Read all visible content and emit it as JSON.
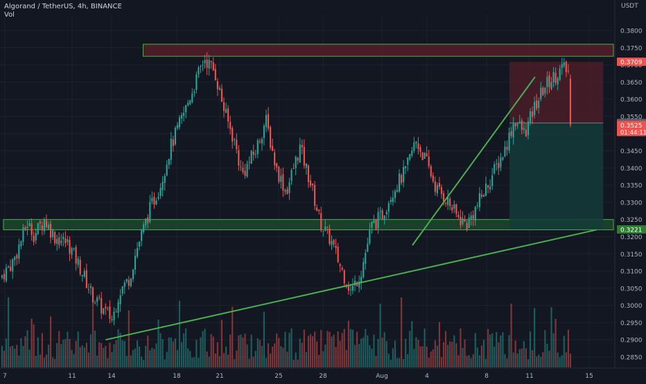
{
  "header": {
    "symbol_line": "Algorand / TetherUS, 4h, BINANCE",
    "volume_label": "Vol",
    "quote_currency": "USDT"
  },
  "colors": {
    "background": "#131722",
    "up": "#26a69a",
    "down": "#ef5350",
    "trendline": "#4caf50",
    "zone_border": "#4caf50",
    "resistance_fill": "#5c1f2a",
    "support_fill": "#1f4d2e",
    "stop_fill": "#4a1d27",
    "target_fill": "#143b3a",
    "grid": "#1e2230"
  },
  "chart_data": {
    "type": "candlestick",
    "x_tick_labels": [
      "7",
      "11",
      "14",
      "18",
      "21",
      "25",
      "28",
      "Aug",
      "4",
      "8",
      "11",
      "15"
    ],
    "y_tick_labels": [
      "0.3800",
      "0.3750",
      "0.3700",
      "0.3650",
      "0.3600",
      "0.3550",
      "0.3500",
      "0.3450",
      "0.3400",
      "0.3350",
      "0.3300",
      "0.3250",
      "0.3200",
      "0.3150",
      "0.3100",
      "0.3050",
      "0.3000",
      "0.2950",
      "0.2900",
      "0.2850"
    ],
    "ylim": [
      0.2835,
      0.3835
    ],
    "x_domain": [
      0,
      180
    ],
    "price_path": [
      [
        0,
        0.308
      ],
      [
        4,
        0.313
      ],
      [
        8,
        0.324
      ],
      [
        10,
        0.3205
      ],
      [
        13,
        0.325
      ],
      [
        16,
        0.32
      ],
      [
        20,
        0.318
      ],
      [
        24,
        0.31
      ],
      [
        27,
        0.303
      ],
      [
        30,
        0.299
      ],
      [
        33,
        0.296
      ],
      [
        35,
        0.304
      ],
      [
        38,
        0.308
      ],
      [
        40,
        0.316
      ],
      [
        44,
        0.328
      ],
      [
        47,
        0.335
      ],
      [
        50,
        0.346
      ],
      [
        54,
        0.356
      ],
      [
        57,
        0.364
      ],
      [
        60,
        0.372
      ],
      [
        63,
        0.368
      ],
      [
        66,
        0.356
      ],
      [
        69,
        0.347
      ],
      [
        71,
        0.338
      ],
      [
        75,
        0.345
      ],
      [
        78,
        0.354
      ],
      [
        81,
        0.34
      ],
      [
        84,
        0.333
      ],
      [
        88,
        0.346
      ],
      [
        91,
        0.336
      ],
      [
        94,
        0.324
      ],
      [
        97,
        0.319
      ],
      [
        100,
        0.311
      ],
      [
        103,
        0.304
      ],
      [
        106,
        0.31
      ],
      [
        109,
        0.323
      ],
      [
        112,
        0.326
      ],
      [
        115,
        0.333
      ],
      [
        119,
        0.339
      ],
      [
        122,
        0.348
      ],
      [
        125,
        0.342
      ],
      [
        128,
        0.334
      ],
      [
        131,
        0.331
      ],
      [
        134,
        0.326
      ],
      [
        137,
        0.3235
      ],
      [
        140,
        0.329
      ],
      [
        144,
        0.337
      ],
      [
        148,
        0.345
      ],
      [
        151,
        0.354
      ],
      [
        154,
        0.35
      ],
      [
        157,
        0.358
      ],
      [
        160,
        0.364
      ],
      [
        163,
        0.367
      ],
      [
        165,
        0.369
      ],
      [
        167,
        0.368
      ],
      [
        168,
        0.3525
      ]
    ],
    "volume_scale": [
      0,
      1
    ],
    "zones": [
      {
        "name": "resistance",
        "y_top": 0.376,
        "y_bottom": 0.3725,
        "x_start": 42,
        "x_end": 180
      },
      {
        "name": "support",
        "y_top": 0.325,
        "y_bottom": 0.322,
        "x_start": 1,
        "x_end": 180
      }
    ],
    "trendlines": [
      {
        "name": "lower-trendline",
        "from": [
          31,
          0.29
        ],
        "to": [
          175,
          0.322
        ]
      },
      {
        "name": "rising-trendline",
        "from": [
          121,
          0.3175
        ],
        "to": [
          157,
          0.3665
        ]
      }
    ],
    "position": {
      "x_start": 149.5,
      "x_end": 177,
      "stop": 0.3709,
      "entry": 0.3531,
      "target": 0.3221
    },
    "price_labels": [
      {
        "name": "stop-price-label",
        "value": 0.3709,
        "text": "0.3709",
        "kind": "red"
      },
      {
        "name": "entry-price-label",
        "value": 0.3531,
        "text": "0.3531",
        "kind": "gray"
      },
      {
        "name": "last-price-label",
        "value": 0.3525,
        "text": "0.3525",
        "sub": "01:44:11",
        "kind": "red"
      },
      {
        "name": "target-price-label",
        "value": 0.3221,
        "text": "0.3221",
        "kind": "green"
      }
    ]
  }
}
